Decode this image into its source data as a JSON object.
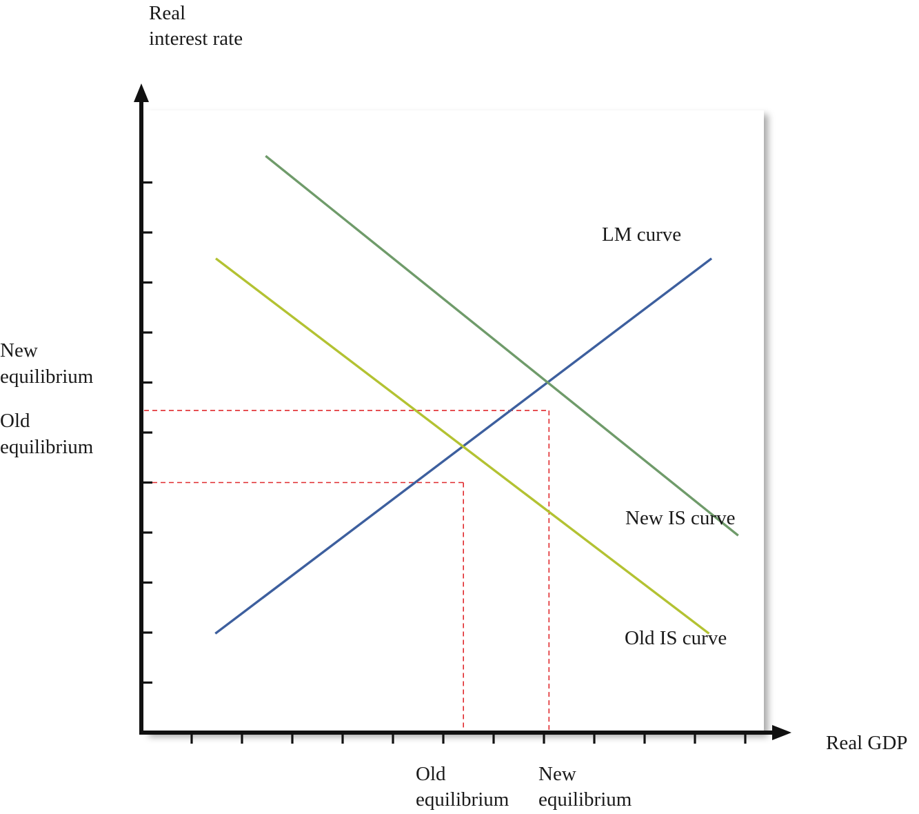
{
  "chart_data": {
    "type": "line",
    "title": "",
    "ylabel_lines": [
      "Real",
      "interest rate"
    ],
    "xlabel": "Real GDP",
    "x_ticks": 12,
    "y_ticks": 11,
    "grid": false,
    "series": [
      {
        "name": "LM curve",
        "color": "#3d5f9e",
        "points": [
          [
            1.47,
            1.98
          ],
          [
            11.33,
            9.48
          ]
        ]
      },
      {
        "name": "New IS curve",
        "color": "#6f9b6a",
        "points": [
          [
            2.47,
            11.53
          ],
          [
            11.86,
            3.94
          ]
        ]
      },
      {
        "name": "Old IS curve",
        "color": "#b3c232",
        "points": [
          [
            1.48,
            9.48
          ],
          [
            11.28,
            1.98
          ]
        ]
      }
    ],
    "equilibria": [
      {
        "name": "Old equilibrium",
        "x": 6.4,
        "y": 5.0,
        "label_x": [
          "Old",
          "equilibrium"
        ],
        "label_y": [
          "Old",
          "equilibrium"
        ]
      },
      {
        "name": "New equilibrium",
        "x": 8.1,
        "y": 6.44,
        "label_x": [
          "New",
          "equilibrium"
        ],
        "label_y": [
          "New",
          "equilibrium"
        ]
      }
    ],
    "guide_color": "#e0282c"
  }
}
